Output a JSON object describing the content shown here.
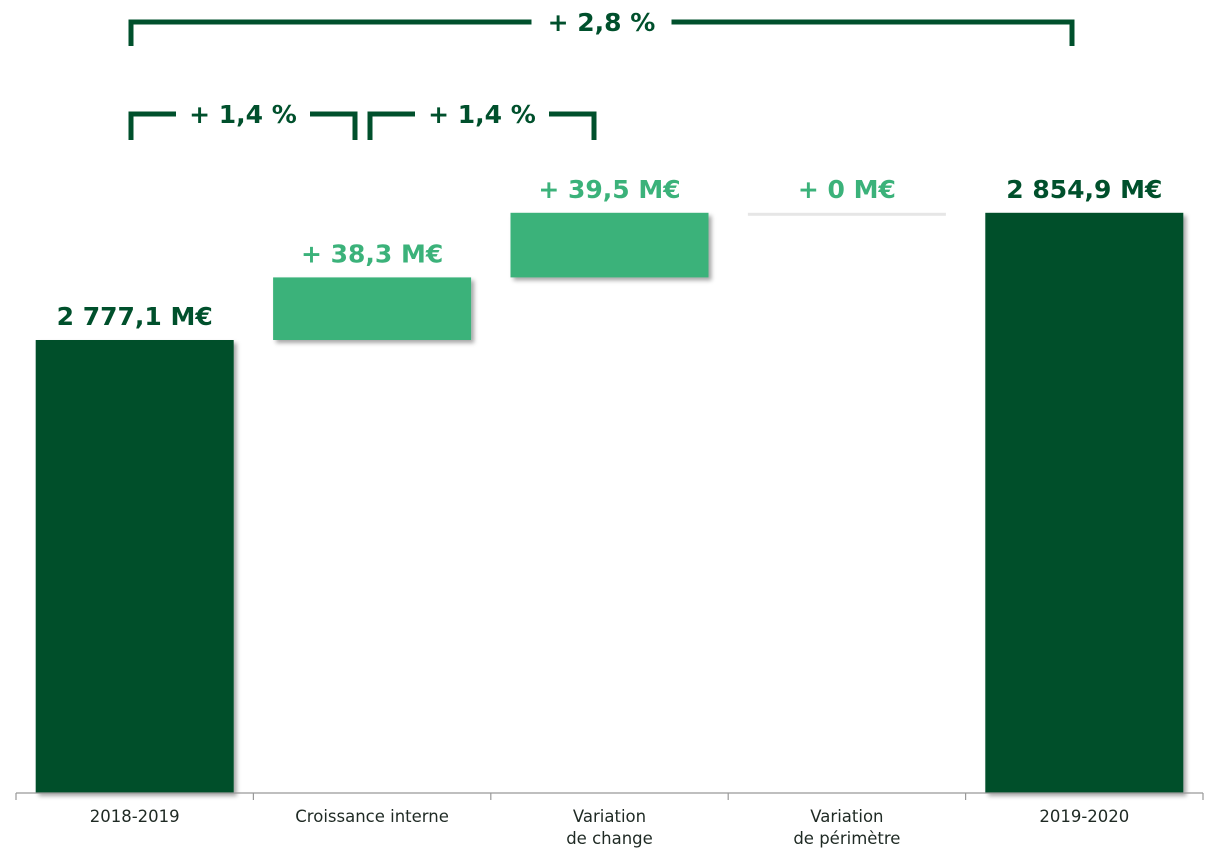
{
  "chart_data": {
    "type": "bar",
    "subtype": "waterfall",
    "categories": [
      [
        "2018-2019"
      ],
      [
        "Croissance interne"
      ],
      [
        "Variation",
        "de change"
      ],
      [
        "Variation",
        "de périmètre"
      ],
      [
        "2019-2020"
      ]
    ],
    "values": [
      2777.1,
      38.3,
      39.5,
      0,
      2854.9
    ],
    "kinds": [
      "total",
      "delta",
      "delta",
      "delta",
      "total"
    ],
    "value_labels": [
      "2 777,1 M€",
      "+ 38,3 M€",
      "+ 39,5 M€",
      "+ 0 M€",
      "2 854,9 M€"
    ],
    "brackets": [
      {
        "label": "+ 2,8 %",
        "from": 0,
        "to": 4
      },
      {
        "label": "+ 1,4 %",
        "from": 0,
        "to": 1
      },
      {
        "label": "+ 1,4 %",
        "from": 1,
        "to": 2
      }
    ],
    "colors": {
      "total": "#00502c",
      "delta": "#3bb27a",
      "zero": "#e6e6e6",
      "axis": "#999999",
      "bracket": "#00502c"
    },
    "grid": false,
    "legend": "none"
  }
}
